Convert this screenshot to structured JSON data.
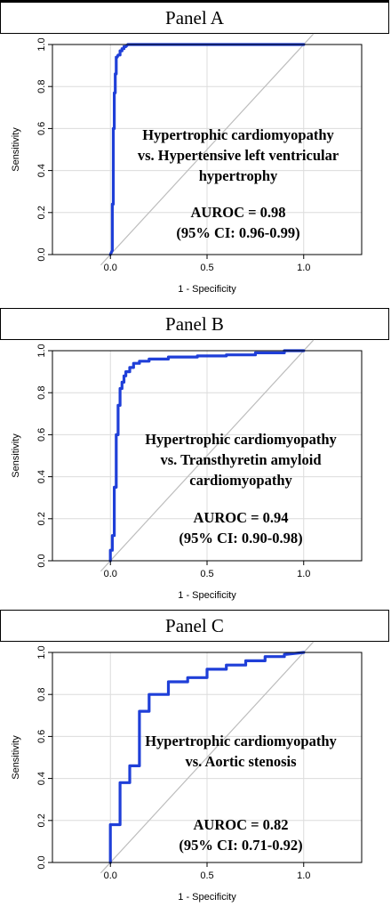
{
  "panels": [
    {
      "title": "Panel A"
    },
    {
      "title": "Panel B"
    },
    {
      "title": "Panel C"
    }
  ],
  "colors": {
    "roc": "#1f3fd8",
    "diagonal": "#bdbdbd",
    "grid": "#dcdcdc",
    "frame": "#000000"
  },
  "chart_data": [
    {
      "type": "line",
      "xlabel": "1 - Specificity",
      "ylabel": "Sensitivity",
      "xlim": [
        -0.3,
        1.3
      ],
      "ylim": [
        0.0,
        1.0
      ],
      "xticks": [
        "0.0",
        "0.5",
        "1.0"
      ],
      "yticks": [
        "0.0",
        "0.2",
        "0.4",
        "0.6",
        "0.8",
        "1.0"
      ],
      "grid": true,
      "annotation": [
        "Hypertrophic cardiomyopathy",
        "vs. Hypertensive left ventricular",
        "hypertrophy",
        "",
        "AUROC = 0.98",
        "(95% CI: 0.96-0.99)"
      ],
      "series": [
        {
          "x": [
            0.0,
            0.01,
            0.01,
            0.015,
            0.015,
            0.02,
            0.02,
            0.025,
            0.025,
            0.03,
            0.03,
            0.035,
            0.04,
            0.05,
            0.05,
            0.06,
            0.06,
            0.07,
            0.07,
            0.08,
            0.09,
            1.0
          ],
          "y": [
            0.0,
            0.02,
            0.24,
            0.24,
            0.6,
            0.6,
            0.77,
            0.77,
            0.86,
            0.86,
            0.94,
            0.94,
            0.95,
            0.95,
            0.97,
            0.97,
            0.98,
            0.98,
            0.99,
            0.99,
            1.0,
            1.0
          ]
        }
      ],
      "diagonal": [
        [
          0,
          0
        ],
        [
          1,
          1
        ]
      ]
    },
    {
      "type": "line",
      "xlabel": "1 - Specificity",
      "ylabel": "Sensitivity",
      "xlim": [
        -0.3,
        1.3
      ],
      "ylim": [
        0.0,
        1.0
      ],
      "xticks": [
        "0.0",
        "0.5",
        "1.0"
      ],
      "yticks": [
        "0.0",
        "0.2",
        "0.4",
        "0.6",
        "0.8",
        "1.0"
      ],
      "grid": true,
      "annotation": [
        "Hypertrophic cardiomyopathy",
        "vs. Transthyretin amyloid",
        "cardiomyopathy",
        "",
        "AUROC = 0.94",
        "(95% CI: 0.90-0.98)"
      ],
      "series": [
        {
          "x": [
            0.0,
            0.0,
            0.01,
            0.01,
            0.02,
            0.02,
            0.03,
            0.03,
            0.04,
            0.04,
            0.05,
            0.05,
            0.06,
            0.06,
            0.07,
            0.07,
            0.08,
            0.08,
            0.1,
            0.1,
            0.12,
            0.12,
            0.15,
            0.15,
            0.2,
            0.2,
            0.3,
            0.3,
            0.45,
            0.45,
            0.6,
            0.6,
            0.75,
            0.75,
            0.9,
            0.9,
            1.0
          ],
          "y": [
            0.0,
            0.05,
            0.05,
            0.12,
            0.12,
            0.35,
            0.35,
            0.6,
            0.6,
            0.74,
            0.74,
            0.82,
            0.82,
            0.85,
            0.85,
            0.88,
            0.88,
            0.9,
            0.9,
            0.92,
            0.92,
            0.94,
            0.94,
            0.95,
            0.95,
            0.96,
            0.96,
            0.97,
            0.97,
            0.975,
            0.975,
            0.98,
            0.98,
            0.99,
            0.99,
            1.0,
            1.0
          ]
        }
      ],
      "diagonal": [
        [
          0,
          0
        ],
        [
          1,
          1
        ]
      ]
    },
    {
      "type": "line",
      "xlabel": "1 - Specificity",
      "ylabel": "Sensitivity",
      "xlim": [
        -0.3,
        1.3
      ],
      "ylim": [
        0.0,
        1.0
      ],
      "xticks": [
        "0.0",
        "0.5",
        "1.0"
      ],
      "yticks": [
        "0.0",
        "0.2",
        "0.4",
        "0.6",
        "0.8",
        "1.0"
      ],
      "grid": true,
      "annotation": [
        "Hypertrophic cardiomyopathy",
        "vs. Aortic stenosis",
        "",
        "",
        "AUROC = 0.82",
        "(95% CI: 0.71-0.92)"
      ],
      "series": [
        {
          "x": [
            0.0,
            0.0,
            0.05,
            0.05,
            0.1,
            0.1,
            0.15,
            0.15,
            0.2,
            0.2,
            0.3,
            0.3,
            0.4,
            0.4,
            0.5,
            0.5,
            0.6,
            0.6,
            0.7,
            0.7,
            0.8,
            0.8,
            0.9,
            0.9,
            1.0
          ],
          "y": [
            0.0,
            0.18,
            0.18,
            0.38,
            0.38,
            0.46,
            0.46,
            0.72,
            0.72,
            0.8,
            0.8,
            0.86,
            0.86,
            0.88,
            0.88,
            0.92,
            0.92,
            0.94,
            0.94,
            0.96,
            0.96,
            0.98,
            0.98,
            0.99,
            1.0
          ]
        }
      ],
      "diagonal": [
        [
          0,
          0
        ],
        [
          1,
          1
        ]
      ]
    }
  ]
}
